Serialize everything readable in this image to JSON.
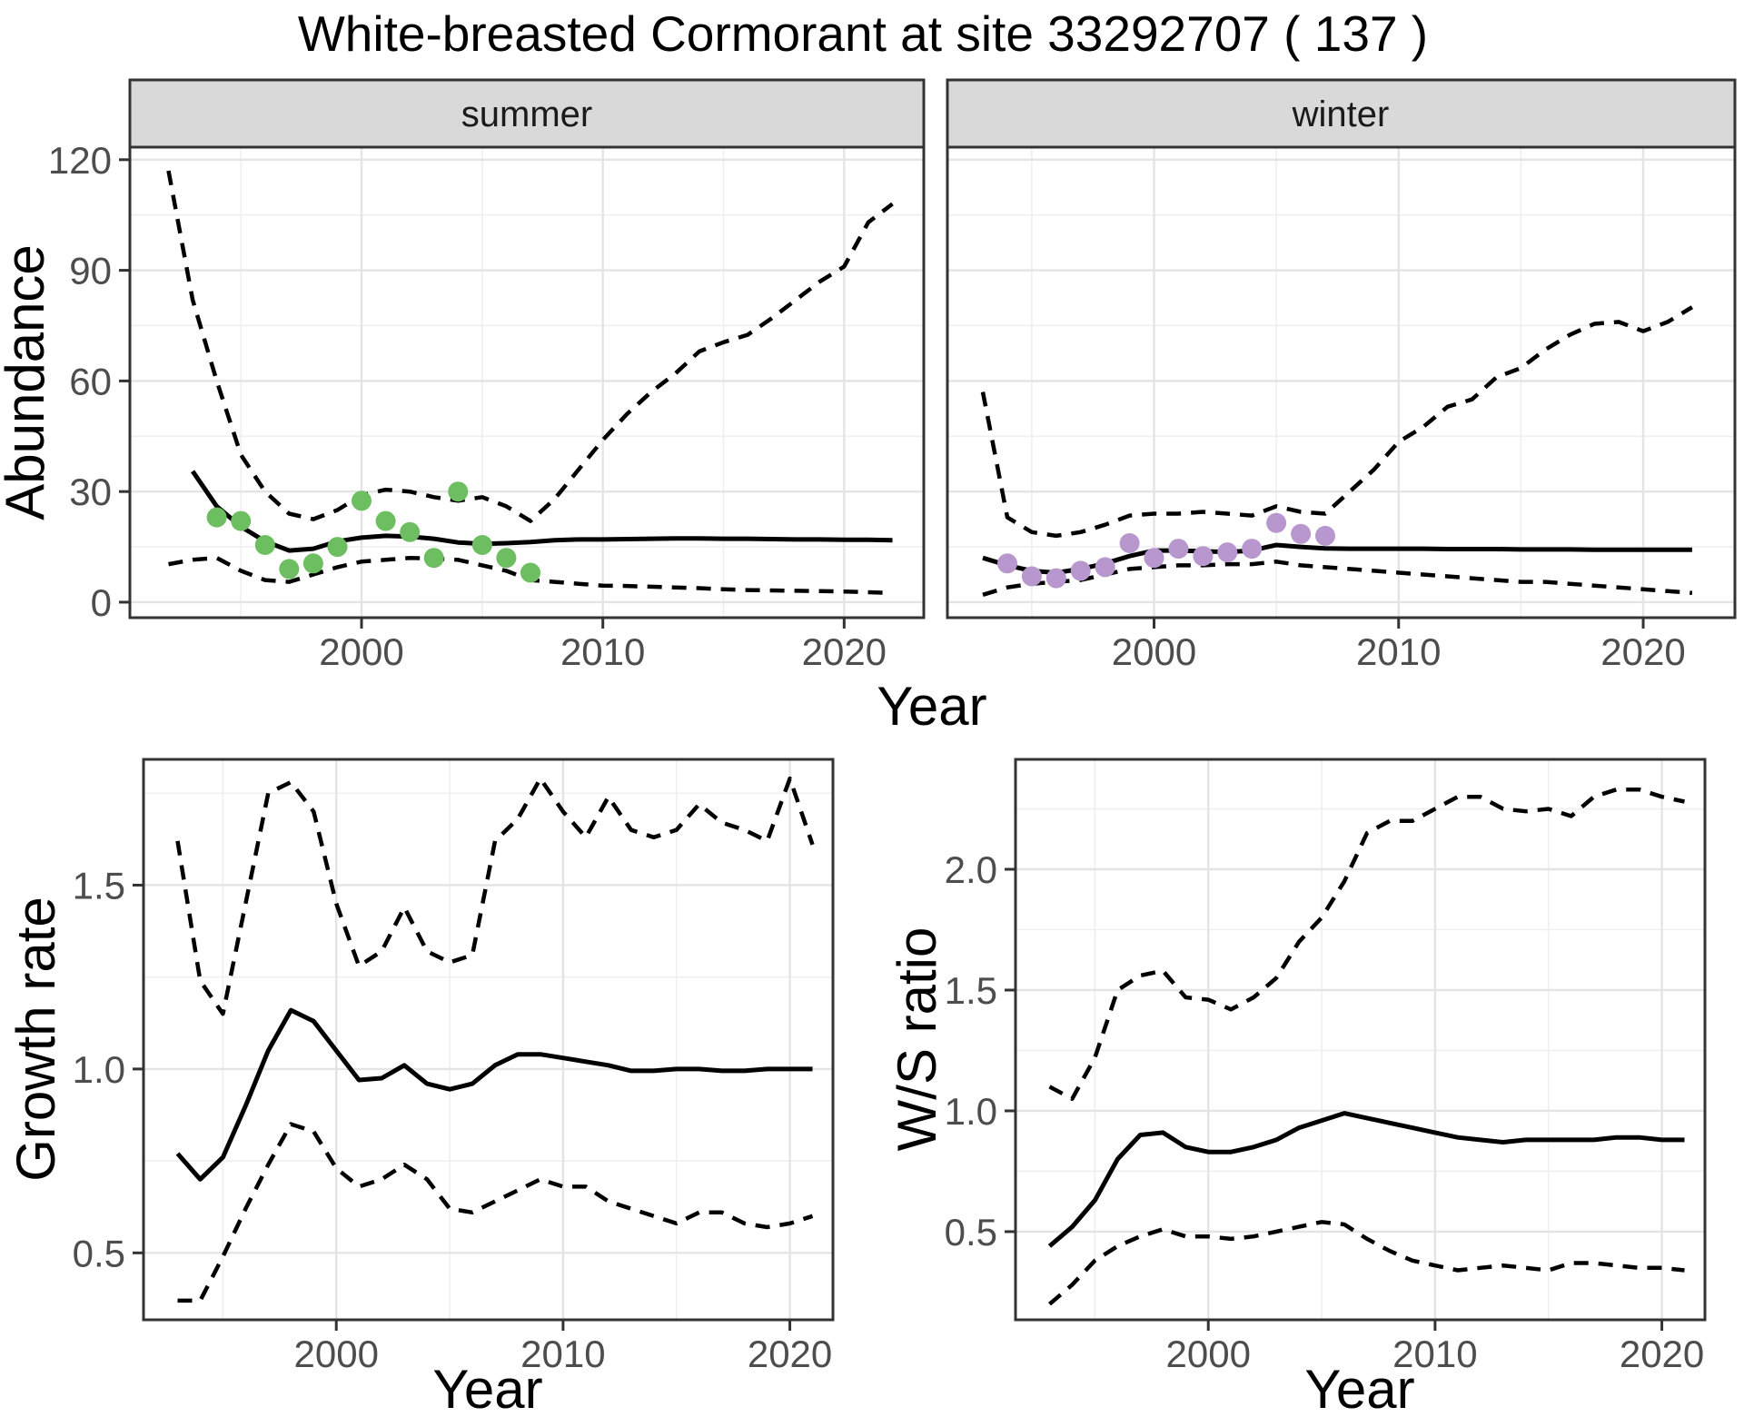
{
  "title": "White-breasted Cormorant at site 33292707 ( 137 )",
  "colors": {
    "summer_points": "#6cbe60",
    "winter_points": "#b797cd",
    "line": "#000000",
    "panel_bg": "#ffffff",
    "strip_bg": "#d9d9d9",
    "strip_text": "#1a1a1a",
    "grid_major": "#e4e4e4",
    "grid_minor": "#efefef",
    "panel_border": "#333333",
    "tick_mark": "#333333",
    "axis_text": "#4d4d4d",
    "title_text": "#000000"
  },
  "chart_data": [
    {
      "id": "abundance-summer",
      "type": "line",
      "facet": "summer",
      "xlabel": "Year",
      "ylabel": "Abundance",
      "xlim": [
        1990.4,
        2023.3
      ],
      "ylim": [
        -4.2,
        123.4
      ],
      "xticks": [
        2000,
        2010,
        2020
      ],
      "xtick_labels": [
        "2000",
        "2010",
        "2020"
      ],
      "xticks_minor": [
        1995,
        2005,
        2015
      ],
      "yticks": [
        0,
        30,
        60,
        90,
        120
      ],
      "ytick_labels": [
        "0",
        "30",
        "60",
        "90",
        "120"
      ],
      "yticks_minor": [
        15,
        45,
        75,
        105
      ],
      "series": [
        {
          "name": "upper-95ci",
          "style": "dashed",
          "x": [
            1992,
            1993,
            1994,
            1995,
            1996,
            1997,
            1998,
            1999,
            2000,
            2001,
            2002,
            2003,
            2004,
            2005,
            2006,
            2007,
            2008,
            2009,
            2010,
            2011,
            2012,
            2013,
            2014,
            2015,
            2016,
            2017,
            2018,
            2019,
            2020,
            2021,
            2022
          ],
          "y": [
            117,
            82,
            60,
            40,
            30,
            24,
            22.5,
            25,
            29,
            30.5,
            30,
            28.5,
            27.5,
            28.5,
            26,
            22,
            28,
            36,
            44,
            51,
            57,
            62,
            68,
            70.5,
            72.5,
            77,
            82,
            87,
            91,
            103,
            108
          ]
        },
        {
          "name": "lower-95ci",
          "style": "dashed",
          "x": [
            1992,
            1993,
            1994,
            1995,
            1996,
            1997,
            1998,
            1999,
            2000,
            2001,
            2002,
            2003,
            2004,
            2005,
            2006,
            2007,
            2008,
            2009,
            2010,
            2011,
            2012,
            2013,
            2014,
            2015,
            2016,
            2017,
            2018,
            2019,
            2020,
            2021,
            2022
          ],
          "y": [
            10.3,
            11.5,
            12,
            8.5,
            6,
            5.5,
            7.5,
            9.5,
            11,
            11.5,
            12,
            11.8,
            11.5,
            10,
            8.5,
            6,
            5.5,
            5,
            4.5,
            4.4,
            4.2,
            4,
            3.8,
            3.5,
            3.3,
            3.2,
            3.1,
            3,
            2.9,
            2.7,
            2.5
          ]
        },
        {
          "name": "median",
          "style": "solid",
          "x": [
            1993,
            1994,
            1995,
            1996,
            1997,
            1998,
            1999,
            2000,
            2001,
            2002,
            2003,
            2004,
            2005,
            2006,
            2007,
            2008,
            2009,
            2010,
            2011,
            2012,
            2013,
            2014,
            2015,
            2016,
            2017,
            2018,
            2019,
            2020,
            2021,
            2022
          ],
          "y": [
            35.5,
            26,
            20.5,
            16.5,
            14,
            14.5,
            16.5,
            17.5,
            18,
            17.8,
            17.2,
            16.2,
            15.8,
            16,
            16.3,
            16.8,
            17,
            17,
            17.1,
            17.2,
            17.3,
            17.3,
            17.2,
            17.2,
            17.1,
            17,
            17,
            16.9,
            16.9,
            16.8
          ]
        }
      ],
      "points": {
        "name": "observed-summer",
        "color_key": "summer_points",
        "x": [
          1994,
          1995,
          1996,
          1997,
          1998,
          1999,
          2000,
          2001,
          2002,
          2003,
          2004,
          2005,
          2006,
          2007
        ],
        "y": [
          23,
          22,
          15.5,
          9,
          10.5,
          15,
          27.5,
          22,
          19,
          12,
          30,
          15.5,
          12,
          8
        ]
      }
    },
    {
      "id": "abundance-winter",
      "type": "line",
      "facet": "winter",
      "xlabel": "Year",
      "ylabel": "Abundance",
      "xlim": [
        1991.55,
        2023.75
      ],
      "ylim": [
        -4.2,
        123.4
      ],
      "xticks": [
        2000,
        2010,
        2020
      ],
      "xtick_labels": [
        "2000",
        "2010",
        "2020"
      ],
      "xticks_minor": [
        1995,
        2005,
        2015
      ],
      "yticks": [
        0,
        30,
        60,
        90,
        120
      ],
      "ytick_labels": [
        "0",
        "30",
        "60",
        "90",
        "120"
      ],
      "yticks_minor": [
        15,
        45,
        75,
        105
      ],
      "series": [
        {
          "name": "upper-95ci",
          "style": "dashed",
          "x": [
            1993,
            1994,
            1995,
            1996,
            1997,
            1998,
            1999,
            2000,
            2001,
            2002,
            2003,
            2004,
            2005,
            2006,
            2007,
            2008,
            2009,
            2010,
            2011,
            2012,
            2013,
            2014,
            2015,
            2016,
            2017,
            2018,
            2019,
            2020,
            2021,
            2022
          ],
          "y": [
            57,
            23,
            19,
            18,
            19,
            21,
            23.5,
            24,
            24,
            24.5,
            24,
            23.5,
            26,
            24.5,
            24,
            30,
            36,
            43.5,
            47.5,
            53,
            55,
            61,
            63.5,
            68.5,
            72.5,
            75.5,
            76,
            73.5,
            76,
            80
          ]
        },
        {
          "name": "lower-95ci",
          "style": "dashed",
          "x": [
            1993,
            1994,
            1995,
            1996,
            1997,
            1998,
            1999,
            2000,
            2001,
            2002,
            2003,
            2004,
            2005,
            2006,
            2007,
            2008,
            2009,
            2010,
            2011,
            2012,
            2013,
            2014,
            2015,
            2016,
            2017,
            2018,
            2019,
            2020,
            2021,
            2022
          ],
          "y": [
            2,
            4,
            5,
            5.5,
            6,
            7.5,
            9,
            9.5,
            10,
            10,
            10.3,
            10.3,
            11,
            10,
            9.5,
            9,
            8.5,
            8,
            7.5,
            7,
            6.5,
            6,
            5.5,
            5.5,
            5,
            4.5,
            4,
            3.5,
            3,
            2.5
          ]
        },
        {
          "name": "median",
          "style": "solid",
          "x": [
            1993,
            1994,
            1995,
            1996,
            1997,
            1998,
            1999,
            2000,
            2001,
            2002,
            2003,
            2004,
            2005,
            2006,
            2007,
            2008,
            2009,
            2010,
            2011,
            2012,
            2013,
            2014,
            2015,
            2016,
            2017,
            2018,
            2019,
            2020,
            2021,
            2022
          ],
          "y": [
            12,
            10,
            8.5,
            8,
            9,
            10.5,
            12.5,
            14,
            14,
            13.8,
            13.6,
            14,
            15.5,
            15,
            14.6,
            14.5,
            14.5,
            14.5,
            14.5,
            14.4,
            14.4,
            14.4,
            14.3,
            14.3,
            14.3,
            14.2,
            14.2,
            14.2,
            14.2,
            14.2
          ]
        }
      ],
      "points": {
        "name": "observed-winter",
        "color_key": "winter_points",
        "x": [
          1994,
          1995,
          1996,
          1997,
          1998,
          1999,
          2000,
          2001,
          2002,
          2003,
          2004,
          2005,
          2006,
          2007
        ],
        "y": [
          10.5,
          7,
          6.5,
          8.5,
          9.5,
          16,
          12,
          14.5,
          12.5,
          13.5,
          14.5,
          21.5,
          18.5,
          18
        ]
      }
    },
    {
      "id": "growth-rate",
      "type": "line",
      "facet": null,
      "xlabel": "Year",
      "ylabel": "Growth rate",
      "xlim": [
        1991.5,
        2021.9
      ],
      "ylim": [
        0.318,
        1.842
      ],
      "xticks": [
        2000,
        2010,
        2020
      ],
      "xtick_labels": [
        "2000",
        "2010",
        "2020"
      ],
      "xticks_minor": [
        1995,
        2005,
        2015
      ],
      "yticks": [
        0.5,
        1.0,
        1.5
      ],
      "ytick_labels": [
        "0.5",
        "1.0",
        "1.5"
      ],
      "yticks_minor": [
        0.75,
        1.25,
        1.75
      ],
      "series": [
        {
          "name": "upper-95ci",
          "style": "dashed",
          "x": [
            1993,
            1994,
            1995,
            1996,
            1997,
            1998,
            1999,
            2000,
            2001,
            2002,
            2003,
            2004,
            2005,
            2006,
            2007,
            2008,
            2009,
            2010,
            2011,
            2012,
            2013,
            2014,
            2015,
            2016,
            2017,
            2018,
            2019,
            2020,
            2021
          ],
          "y": [
            1.62,
            1.24,
            1.15,
            1.45,
            1.75,
            1.78,
            1.7,
            1.45,
            1.28,
            1.32,
            1.44,
            1.32,
            1.29,
            1.31,
            1.62,
            1.68,
            1.79,
            1.7,
            1.63,
            1.74,
            1.65,
            1.63,
            1.65,
            1.72,
            1.67,
            1.65,
            1.62,
            1.79,
            1.61
          ]
        },
        {
          "name": "lower-95ci",
          "style": "dashed",
          "x": [
            1993,
            1994,
            1995,
            1996,
            1997,
            1998,
            1999,
            2000,
            2001,
            2002,
            2003,
            2004,
            2005,
            2006,
            2007,
            2008,
            2009,
            2010,
            2011,
            2012,
            2013,
            2014,
            2015,
            2016,
            2017,
            2018,
            2019,
            2020,
            2021
          ],
          "y": [
            0.37,
            0.37,
            0.49,
            0.62,
            0.74,
            0.85,
            0.83,
            0.73,
            0.68,
            0.7,
            0.74,
            0.7,
            0.62,
            0.61,
            0.64,
            0.67,
            0.7,
            0.68,
            0.68,
            0.64,
            0.62,
            0.6,
            0.58,
            0.61,
            0.61,
            0.58,
            0.57,
            0.58,
            0.6
          ]
        },
        {
          "name": "median",
          "style": "solid",
          "x": [
            1993,
            1994,
            1995,
            1996,
            1997,
            1998,
            1999,
            2000,
            2001,
            2002,
            2003,
            2004,
            2005,
            2006,
            2007,
            2008,
            2009,
            2010,
            2011,
            2012,
            2013,
            2014,
            2015,
            2016,
            2017,
            2018,
            2019,
            2020,
            2021
          ],
          "y": [
            0.77,
            0.7,
            0.76,
            0.9,
            1.05,
            1.16,
            1.13,
            1.05,
            0.97,
            0.975,
            1.01,
            0.96,
            0.945,
            0.96,
            1.01,
            1.04,
            1.04,
            1.03,
            1.02,
            1.01,
            0.995,
            0.995,
            1.0,
            1.0,
            0.995,
            0.995,
            1.0,
            1.0,
            1.0
          ]
        }
      ],
      "points": null
    },
    {
      "id": "ws-ratio",
      "type": "line",
      "facet": null,
      "xlabel": "Year",
      "ylabel": "W/S ratio",
      "xlim": [
        1991.5,
        2021.9
      ],
      "ylim": [
        0.135,
        2.455
      ],
      "xticks": [
        2000,
        2010,
        2020
      ],
      "xtick_labels": [
        "2000",
        "2010",
        "2020"
      ],
      "xticks_minor": [
        1995,
        2005,
        2015
      ],
      "yticks": [
        0.5,
        1.0,
        1.5,
        2.0
      ],
      "ytick_labels": [
        "0.5",
        "1.0",
        "1.5",
        "2.0"
      ],
      "yticks_minor": [
        0.75,
        1.25,
        1.75,
        2.25
      ],
      "series": [
        {
          "name": "upper-95ci",
          "style": "dashed",
          "x": [
            1993,
            1994,
            1995,
            1996,
            1997,
            1998,
            1999,
            2000,
            2001,
            2002,
            2003,
            2004,
            2005,
            2006,
            2007,
            2008,
            2009,
            2010,
            2011,
            2012,
            2013,
            2014,
            2015,
            2016,
            2017,
            2018,
            2019,
            2020,
            2021
          ],
          "y": [
            1.1,
            1.05,
            1.22,
            1.5,
            1.56,
            1.58,
            1.47,
            1.46,
            1.42,
            1.47,
            1.55,
            1.7,
            1.8,
            1.95,
            2.15,
            2.2,
            2.2,
            2.25,
            2.3,
            2.3,
            2.25,
            2.24,
            2.25,
            2.22,
            2.3,
            2.33,
            2.33,
            2.3,
            2.28
          ]
        },
        {
          "name": "lower-95ci",
          "style": "dashed",
          "x": [
            1993,
            1994,
            1995,
            1996,
            1997,
            1998,
            1999,
            2000,
            2001,
            2002,
            2003,
            2004,
            2005,
            2006,
            2007,
            2008,
            2009,
            2010,
            2011,
            2012,
            2013,
            2014,
            2015,
            2016,
            2017,
            2018,
            2019,
            2020,
            2021
          ],
          "y": [
            0.2,
            0.28,
            0.38,
            0.44,
            0.48,
            0.51,
            0.48,
            0.48,
            0.47,
            0.48,
            0.5,
            0.52,
            0.54,
            0.53,
            0.47,
            0.42,
            0.38,
            0.36,
            0.34,
            0.35,
            0.36,
            0.35,
            0.34,
            0.37,
            0.37,
            0.36,
            0.35,
            0.35,
            0.34
          ]
        },
        {
          "name": "median",
          "style": "solid",
          "x": [
            1993,
            1994,
            1995,
            1996,
            1997,
            1998,
            1999,
            2000,
            2001,
            2002,
            2003,
            2004,
            2005,
            2006,
            2007,
            2008,
            2009,
            2010,
            2011,
            2012,
            2013,
            2014,
            2015,
            2016,
            2017,
            2018,
            2019,
            2020,
            2021
          ],
          "y": [
            0.44,
            0.52,
            0.63,
            0.8,
            0.9,
            0.91,
            0.85,
            0.83,
            0.83,
            0.85,
            0.88,
            0.93,
            0.96,
            0.99,
            0.97,
            0.95,
            0.93,
            0.91,
            0.89,
            0.88,
            0.87,
            0.88,
            0.88,
            0.88,
            0.88,
            0.89,
            0.89,
            0.88,
            0.88
          ]
        }
      ],
      "points": null
    }
  ]
}
